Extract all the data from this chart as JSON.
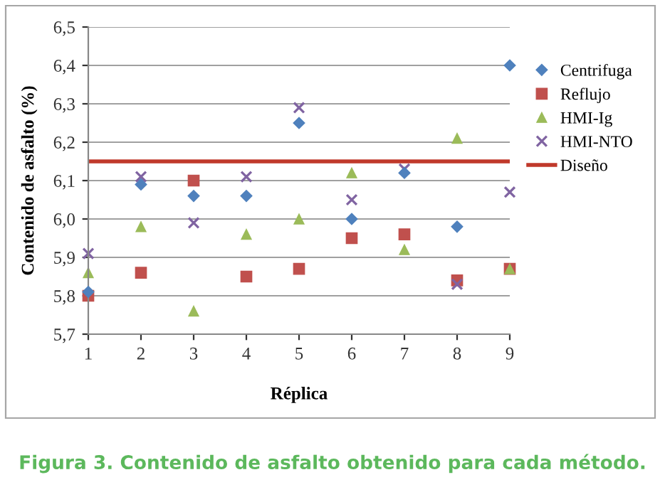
{
  "chart_data": {
    "type": "scatter",
    "xlabel": "Réplica",
    "ylabel": "Contenido de asfalto (%)",
    "x": [
      1,
      2,
      3,
      4,
      5,
      6,
      7,
      8,
      9
    ],
    "series": [
      {
        "name": "Centrifuga",
        "color": "#4f81bd",
        "marker": "diamond",
        "values": [
          5.81,
          6.09,
          6.06,
          6.06,
          6.25,
          6.0,
          6.12,
          5.98,
          6.4
        ]
      },
      {
        "name": "Reflujo",
        "color": "#c0504d",
        "marker": "square",
        "values": [
          5.8,
          5.86,
          6.1,
          5.85,
          5.87,
          5.95,
          5.96,
          5.84,
          5.87
        ]
      },
      {
        "name": "HMI-Ig",
        "color": "#9bbb59",
        "marker": "triangle",
        "values": [
          5.86,
          5.98,
          5.76,
          5.96,
          6.0,
          6.12,
          5.92,
          6.21,
          5.87
        ]
      },
      {
        "name": "HMI-NTO",
        "color": "#8064a2",
        "marker": "cross",
        "values": [
          5.91,
          6.11,
          5.99,
          6.11,
          6.29,
          6.05,
          6.13,
          5.83,
          6.07
        ]
      },
      {
        "name": "Diseño",
        "color": "#c0392b",
        "type": "line",
        "marker": "none",
        "line_style": "solid",
        "x": [
          1,
          9
        ],
        "values": [
          6.15,
          6.15
        ]
      }
    ],
    "xlim": [
      1,
      9
    ],
    "xticks": [
      1,
      2,
      3,
      4,
      5,
      6,
      7,
      8,
      9
    ],
    "ylim": [
      5.7,
      6.5
    ],
    "yticks": [
      {
        "value": 5.7,
        "label": "5,7"
      },
      {
        "value": 5.8,
        "label": "5,8"
      },
      {
        "value": 5.9,
        "label": "5,9"
      },
      {
        "value": 6.0,
        "label": "6,0"
      },
      {
        "value": 6.1,
        "label": "6,1"
      },
      {
        "value": 6.2,
        "label": "6,2"
      },
      {
        "value": 6.3,
        "label": "6,3"
      },
      {
        "value": 6.4,
        "label": "6,4"
      },
      {
        "value": 6.5,
        "label": "6,5"
      }
    ],
    "grid": "y",
    "legend": "right",
    "annotations": [
      "Figura 3. Contenido de asfalto obtenido para cada método."
    ]
  }
}
